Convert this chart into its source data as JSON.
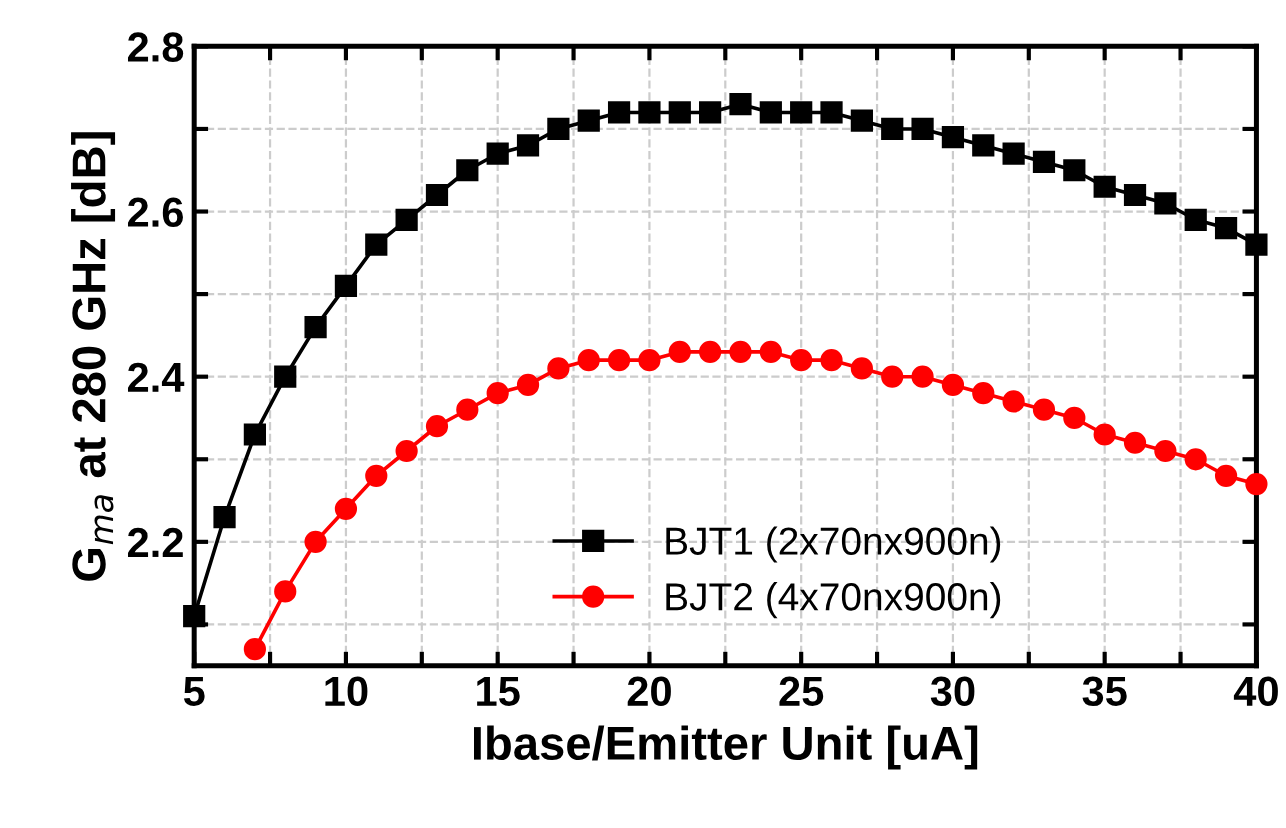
{
  "chart_data": {
    "type": "line",
    "xlabel": "Ibase/Emitter Unit [uA]",
    "ylabel": "G$_{ma}$ at 280 GHz [dB]",
    "xlim": [
      5,
      40
    ],
    "ylim": [
      2.05,
      2.8
    ],
    "xticks": [
      5,
      {
        "value": 7.5,
        "label": null
      },
      10,
      {
        "value": 12.5,
        "label": null
      },
      15,
      {
        "value": 17.5,
        "label": null
      },
      20,
      {
        "value": 22.5,
        "label": null
      },
      25,
      {
        "value": 27.5,
        "label": null
      },
      30,
      {
        "value": 32.5,
        "label": null
      },
      35,
      {
        "value": 37.5,
        "label": null
      },
      40
    ],
    "yticks": [
      {
        "value": 2.1,
        "label": null
      },
      2.2,
      {
        "value": 2.3,
        "label": null
      },
      2.4,
      {
        "value": 2.5,
        "label": null
      },
      2.6,
      {
        "value": 2.7,
        "label": null
      },
      2.8
    ],
    "grid": true,
    "legend": "bottom",
    "line_style": "solid",
    "series": [
      {
        "name": "BJT1 (2x70nx900n)",
        "color": "#000000",
        "marker": "square",
        "x": [
          5,
          6,
          7,
          8,
          9,
          10,
          11,
          12,
          13,
          14,
          15,
          16,
          17,
          18,
          19,
          20,
          21,
          22,
          23,
          24,
          25,
          26,
          27,
          28,
          29,
          30,
          31,
          32,
          33,
          34,
          35,
          36,
          37,
          38,
          39,
          40
        ],
        "values": [
          2.11,
          2.23,
          2.33,
          2.4,
          2.46,
          2.51,
          2.56,
          2.59,
          2.62,
          2.65,
          2.67,
          2.68,
          2.7,
          2.71,
          2.72,
          2.72,
          2.72,
          2.72,
          2.73,
          2.72,
          2.72,
          2.72,
          2.71,
          2.7,
          2.7,
          2.69,
          2.68,
          2.67,
          2.66,
          2.65,
          2.63,
          2.62,
          2.61,
          2.59,
          2.58,
          2.56
        ]
      },
      {
        "name": "BJT2 (4x70nx900n)",
        "color": "#ff0000",
        "marker": "circle",
        "x": [
          7,
          8,
          9,
          10,
          11,
          12,
          13,
          14,
          15,
          16,
          17,
          18,
          19,
          20,
          21,
          22,
          23,
          24,
          25,
          26,
          27,
          28,
          29,
          30,
          31,
          32,
          33,
          34,
          35,
          36,
          37,
          38,
          39,
          40
        ],
        "values": [
          2.07,
          2.14,
          2.2,
          2.24,
          2.28,
          2.31,
          2.34,
          2.36,
          2.38,
          2.39,
          2.41,
          2.42,
          2.42,
          2.42,
          2.43,
          2.43,
          2.43,
          2.43,
          2.42,
          2.42,
          2.41,
          2.4,
          2.4,
          2.39,
          2.38,
          2.37,
          2.36,
          2.35,
          2.33,
          2.32,
          2.31,
          2.3,
          2.28,
          2.27
        ]
      }
    ]
  }
}
